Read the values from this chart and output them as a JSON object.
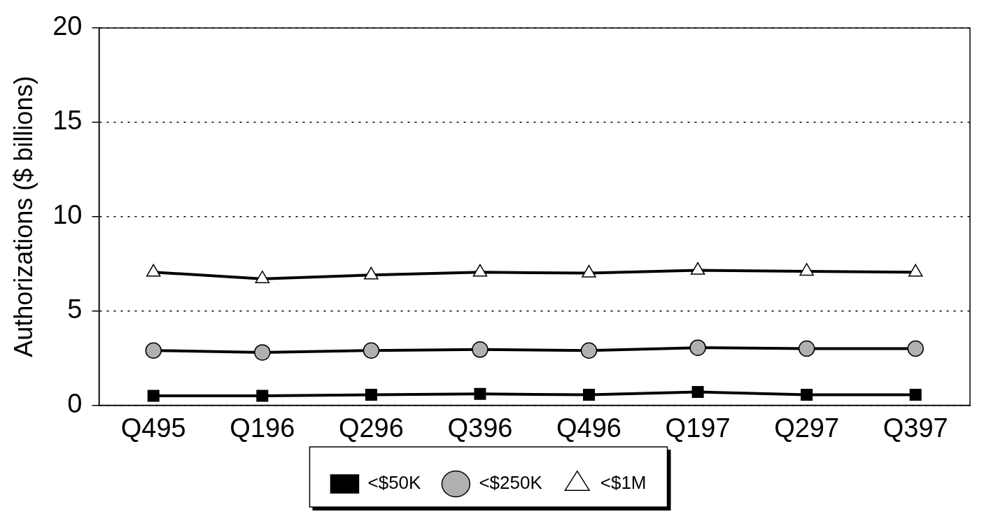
{
  "chart_data": {
    "type": "line",
    "ylabel": "Authorizations ($ billions)",
    "categories": [
      "Q495",
      "Q196",
      "Q296",
      "Q396",
      "Q496",
      "Q197",
      "Q297",
      "Q397"
    ],
    "series": [
      {
        "name": "<$50K",
        "color": "#000000",
        "marker": "square",
        "values": [
          0.5,
          0.5,
          0.55,
          0.6,
          0.55,
          0.7,
          0.55,
          0.55
        ]
      },
      {
        "name": "<$250K",
        "color": "#000000",
        "marker": "circle",
        "values": [
          2.9,
          2.8,
          2.9,
          2.95,
          2.9,
          3.05,
          3.0,
          3.0
        ]
      },
      {
        "name": "<$1M",
        "color": "#000000",
        "marker": "triangle",
        "values": [
          7.05,
          6.7,
          6.9,
          7.05,
          7.0,
          7.15,
          7.1,
          7.05
        ]
      }
    ],
    "ylim": [
      0,
      20
    ],
    "yticks": [
      0,
      5,
      10,
      15,
      20
    ],
    "grid": "y",
    "legend": "bottom",
    "line_style": "solid"
  }
}
